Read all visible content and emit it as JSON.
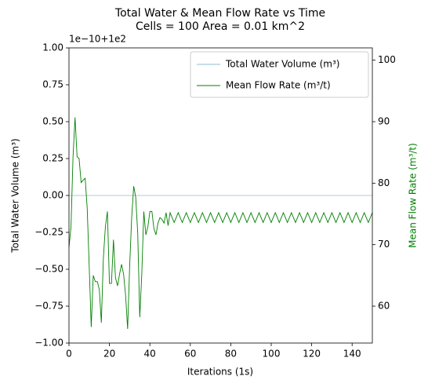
{
  "chart_data": {
    "type": "line",
    "title": "Total Water & Mean Flow Rate vs Time",
    "subtitle": "Cells = 100 Area = 0.01 km^2",
    "x_label": "Iterations (1s)",
    "y_label": "Total Water Volume (m³)",
    "y2_label": "Mean Flow Rate (m³/t)",
    "y_offset_text": "1e−10+1e2",
    "legend": "upper right",
    "xlim": [
      0,
      150
    ],
    "xticks": [
      0,
      20,
      40,
      60,
      80,
      100,
      120,
      140
    ],
    "ylim": [
      -1,
      1
    ],
    "yticks": [
      {
        "value": -1,
        "label": "−1.00"
      },
      {
        "value": -0.75,
        "label": "−0.75"
      },
      {
        "value": -0.5,
        "label": "−0.50"
      },
      {
        "value": -0.25,
        "label": "−0.25"
      },
      {
        "value": 0,
        "label": "0.00"
      },
      {
        "value": 0.25,
        "label": "0.25"
      },
      {
        "value": 0.5,
        "label": "0.50"
      },
      {
        "value": 0.75,
        "label": "0.75"
      },
      {
        "value": 1,
        "label": "1.00"
      }
    ],
    "y2lim": [
      54,
      102
    ],
    "y2ticks": [
      60,
      70,
      80,
      90,
      100
    ],
    "y2_color": "#008000",
    "x": [
      0,
      1,
      2,
      3,
      4,
      5,
      6,
      7,
      8,
      9,
      10,
      11,
      12,
      13,
      14,
      15,
      16,
      17,
      18,
      19,
      20,
      21,
      22,
      23,
      24,
      25,
      26,
      27,
      28,
      29,
      30,
      31,
      32,
      33,
      34,
      35,
      36,
      37,
      38,
      39,
      40,
      41,
      42,
      43,
      44,
      45,
      46,
      47,
      48,
      49,
      50,
      51,
      52,
      53,
      54,
      55,
      56,
      57,
      58,
      59,
      60,
      61,
      62,
      63,
      64,
      65,
      66,
      67,
      68,
      69,
      70,
      71,
      72,
      73,
      74,
      75,
      76,
      77,
      78,
      79,
      80,
      81,
      82,
      83,
      84,
      85,
      86,
      87,
      88,
      89,
      90,
      91,
      92,
      93,
      94,
      95,
      96,
      97,
      98,
      99,
      100,
      101,
      102,
      103,
      104,
      105,
      106,
      107,
      108,
      109,
      110,
      111,
      112,
      113,
      114,
      115,
      116,
      117,
      118,
      119,
      120,
      121,
      122,
      123,
      124,
      125,
      126,
      127,
      128,
      129,
      130,
      131,
      132,
      133,
      134,
      135,
      136,
      137,
      138,
      139,
      140,
      141,
      142,
      143,
      144,
      145,
      146,
      147,
      148,
      149,
      150
    ],
    "series": [
      {
        "name": "Total Water Volume (m³)",
        "color": "#8fbcd0",
        "values": [
          0,
          0,
          0,
          0,
          0,
          0,
          0,
          0,
          0,
          0,
          0,
          0,
          0,
          0,
          0,
          0,
          0,
          0,
          0,
          0,
          0,
          0,
          0,
          0,
          0,
          0,
          0,
          0,
          0,
          0,
          0,
          0,
          0,
          0,
          0,
          0,
          0,
          0,
          0,
          0,
          0,
          0,
          0,
          0,
          0,
          0,
          0,
          0,
          0,
          0,
          0,
          0,
          0,
          0,
          0,
          0,
          0,
          0,
          0,
          0,
          0,
          0,
          0,
          0,
          0,
          0,
          0,
          0,
          0,
          0,
          0,
          0,
          0,
          0,
          0,
          0,
          0,
          0,
          0,
          0,
          0,
          0,
          0,
          0,
          0,
          0,
          0,
          0,
          0,
          0,
          0,
          0,
          0,
          0,
          0,
          0,
          0,
          0,
          0,
          0,
          0,
          0,
          0,
          0,
          0,
          0,
          0,
          0,
          0,
          0,
          0,
          0,
          0,
          0,
          0,
          0,
          0,
          0,
          0,
          0,
          0,
          0,
          0,
          0,
          0,
          0,
          0,
          0,
          0,
          0,
          0,
          0,
          0,
          0,
          0,
          0,
          0,
          0,
          0,
          0,
          0,
          0,
          0,
          0,
          0,
          0,
          0,
          0,
          0,
          0,
          0
        ]
      },
      {
        "name": "Mean Flow Rate (m³/t)",
        "color": "#008000",
        "axis": "y2",
        "values": [
          69.6,
          72.9,
          84.3,
          90.7,
          84.3,
          84,
          80.1,
          80.5,
          80.8,
          76,
          66.5,
          56.6,
          65,
          64,
          64,
          62.7,
          57.3,
          67.8,
          72.9,
          75.4,
          63.7,
          63.7,
          70.8,
          64.6,
          63.3,
          65.2,
          66.8,
          65.2,
          61.7,
          56.3,
          66.5,
          74.4,
          79.5,
          77.7,
          71.8,
          58.2,
          65.2,
          75.4,
          71.6,
          72.9,
          75.4,
          75.4,
          72.6,
          71.6,
          73.5,
          74.4,
          74.1,
          73.5,
          75.2,
          73.1,
          75.2,
          74.4,
          73.6,
          74.4,
          75.2,
          74.4,
          73.6,
          74.4,
          75.2,
          74.4,
          73.6,
          74.4,
          75.2,
          74.4,
          73.6,
          74.4,
          75.2,
          74.4,
          73.6,
          74.4,
          75.2,
          74.4,
          73.6,
          74.4,
          75.2,
          74.4,
          73.6,
          74.4,
          75.2,
          74.4,
          73.6,
          74.4,
          75.2,
          74.4,
          73.6,
          74.4,
          75.2,
          74.4,
          73.6,
          74.4,
          75.2,
          74.4,
          73.6,
          74.4,
          75.2,
          74.4,
          73.6,
          74.4,
          75.2,
          74.4,
          73.6,
          74.4,
          75.2,
          74.4,
          73.6,
          74.4,
          75.2,
          74.4,
          73.6,
          74.4,
          75.2,
          74.4,
          73.6,
          74.4,
          75.2,
          74.4,
          73.6,
          74.4,
          75.2,
          74.4,
          73.6,
          74.4,
          75.2,
          74.4,
          73.6,
          74.4,
          75.2,
          74.4,
          73.6,
          74.4,
          75.2,
          74.4,
          73.6,
          74.4,
          75.2,
          74.4,
          73.6,
          74.4,
          75.2,
          74.4,
          73.6,
          74.4,
          75.2,
          74.4,
          73.6,
          74.4,
          75.2,
          74.4,
          73.6,
          74.4,
          75.2
        ]
      }
    ]
  }
}
